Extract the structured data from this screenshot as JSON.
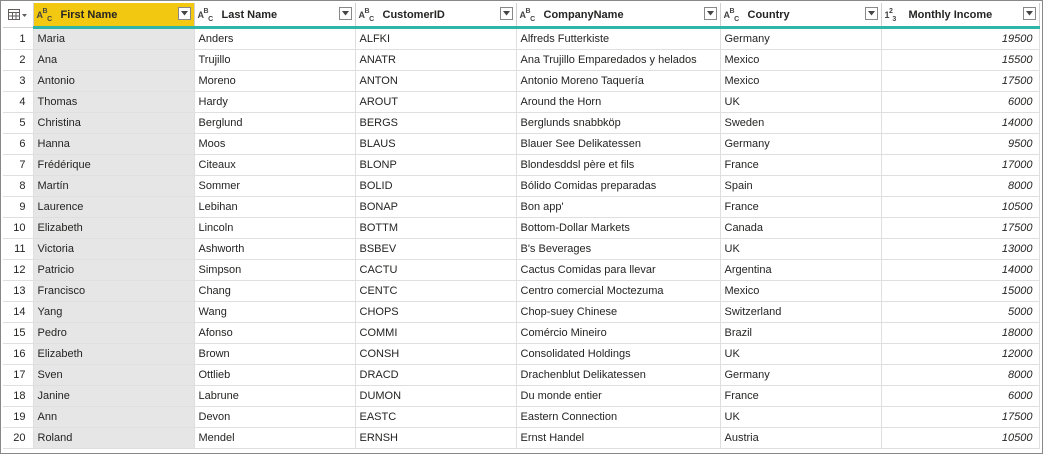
{
  "columns": [
    {
      "label": "First Name",
      "type_icon": "text-type-icon",
      "type": "ABC"
    },
    {
      "label": "Last Name",
      "type_icon": "text-type-icon",
      "type": "ABC"
    },
    {
      "label": "CustomerID",
      "type_icon": "text-type-icon",
      "type": "ABC"
    },
    {
      "label": "CompanyName",
      "type_icon": "text-type-icon",
      "type": "ABC"
    },
    {
      "label": "Country",
      "type_icon": "text-type-icon",
      "type": "ABC"
    },
    {
      "label": "Monthly Income",
      "type_icon": "number-type-icon",
      "type": "123"
    }
  ],
  "rows": [
    [
      "1",
      "Maria",
      "Anders",
      "ALFKI",
      "Alfreds Futterkiste",
      "Germany",
      "19500"
    ],
    [
      "2",
      "Ana",
      "Trujillo",
      "ANATR",
      "Ana Trujillo Emparedados y helados",
      "Mexico",
      "15500"
    ],
    [
      "3",
      "Antonio",
      "Moreno",
      "ANTON",
      "Antonio Moreno Taquería",
      "Mexico",
      "17500"
    ],
    [
      "4",
      "Thomas",
      "Hardy",
      "AROUT",
      "Around the Horn",
      "UK",
      "6000"
    ],
    [
      "5",
      "Christina",
      "Berglund",
      "BERGS",
      "Berglunds snabbköp",
      "Sweden",
      "14000"
    ],
    [
      "6",
      "Hanna",
      "Moos",
      "BLAUS",
      "Blauer See Delikatessen",
      "Germany",
      "9500"
    ],
    [
      "7",
      "Frédérique",
      "Citeaux",
      "BLONP",
      "Blondesddsl père et fils",
      "France",
      "17000"
    ],
    [
      "8",
      "Martín",
      "Sommer",
      "BOLID",
      "Bólido Comidas preparadas",
      "Spain",
      "8000"
    ],
    [
      "9",
      "Laurence",
      "Lebihan",
      "BONAP",
      "Bon app'",
      "France",
      "10500"
    ],
    [
      "10",
      "Elizabeth",
      "Lincoln",
      "BOTTM",
      "Bottom-Dollar Markets",
      "Canada",
      "17500"
    ],
    [
      "11",
      "Victoria",
      "Ashworth",
      "BSBEV",
      "B's Beverages",
      "UK",
      "13000"
    ],
    [
      "12",
      "Patricio",
      "Simpson",
      "CACTU",
      "Cactus Comidas para llevar",
      "Argentina",
      "14000"
    ],
    [
      "13",
      "Francisco",
      "Chang",
      "CENTC",
      "Centro comercial Moctezuma",
      "Mexico",
      "15000"
    ],
    [
      "14",
      "Yang",
      "Wang",
      "CHOPS",
      "Chop-suey Chinese",
      "Switzerland",
      "5000"
    ],
    [
      "15",
      "Pedro",
      "Afonso",
      "COMMI",
      "Comércio Mineiro",
      "Brazil",
      "18000"
    ],
    [
      "16",
      "Elizabeth",
      "Brown",
      "CONSH",
      "Consolidated Holdings",
      "UK",
      "12000"
    ],
    [
      "17",
      "Sven",
      "Ottlieb",
      "DRACD",
      "Drachenblut Delikatessen",
      "Germany",
      "8000"
    ],
    [
      "18",
      "Janine",
      "Labrune",
      "DUMON",
      "Du monde entier",
      "France",
      "6000"
    ],
    [
      "19",
      "Ann",
      "Devon",
      "EASTC",
      "Eastern Connection",
      "UK",
      "17500"
    ],
    [
      "20",
      "Roland",
      "Mendel",
      "ERNSH",
      "Ernst Handel",
      "Austria",
      "10500"
    ]
  ],
  "colors": {
    "selected_header": "#f2c811",
    "selected_column": "#e6e6e6",
    "header_underline": "#2fb5a8"
  }
}
